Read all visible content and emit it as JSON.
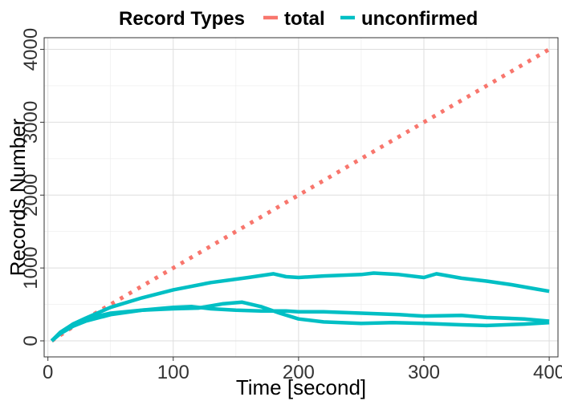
{
  "chart_data": {
    "type": "line",
    "title": "",
    "xlabel": "Time [second]",
    "ylabel": "Records Number",
    "xlim": [
      -3,
      407
    ],
    "ylim": [
      -220,
      4160
    ],
    "xticks": [
      0,
      100,
      200,
      300,
      400
    ],
    "yticks": [
      0,
      1000,
      2000,
      3000,
      4000
    ],
    "grid": true,
    "legend": {
      "title": "Record Types",
      "position": "top",
      "entries": [
        {
          "label": "total",
          "color": "#F8766D"
        },
        {
          "label": "unconfirmed",
          "color": "#00BFC4"
        }
      ]
    },
    "series": [
      {
        "legend_entry": "total",
        "color": "#F8766D",
        "style": "dotted",
        "x": [
          3,
          25,
          50,
          100,
          150,
          200,
          250,
          300,
          350,
          400
        ],
        "y": [
          0,
          250,
          500,
          1000,
          1500,
          2000,
          2500,
          3000,
          3500,
          4000
        ]
      },
      {
        "legend_entry": "unconfirmed",
        "color": "#00BFC4",
        "style": "solid",
        "x": [
          3,
          10,
          20,
          30,
          50,
          75,
          100,
          130,
          160,
          180,
          190,
          200,
          220,
          250,
          260,
          280,
          300,
          310,
          330,
          350,
          370,
          390,
          400
        ],
        "y": [
          0,
          120,
          230,
          310,
          460,
          590,
          700,
          800,
          870,
          920,
          880,
          870,
          890,
          910,
          930,
          910,
          870,
          920,
          860,
          820,
          770,
          710,
          680
        ]
      },
      {
        "legend_entry": "unconfirmed",
        "color": "#00BFC4",
        "style": "solid",
        "x": [
          3,
          10,
          20,
          30,
          50,
          75,
          100,
          120,
          140,
          155,
          170,
          185,
          200,
          220,
          250,
          275,
          300,
          330,
          350,
          380,
          400
        ],
        "y": [
          0,
          100,
          200,
          270,
          360,
          420,
          440,
          450,
          510,
          530,
          470,
          380,
          300,
          260,
          240,
          250,
          240,
          220,
          210,
          230,
          250
        ]
      },
      {
        "legend_entry": "unconfirmed",
        "color": "#00BFC4",
        "style": "solid",
        "x": [
          3,
          10,
          20,
          30,
          50,
          75,
          100,
          115,
          130,
          150,
          170,
          190,
          200,
          220,
          250,
          280,
          300,
          330,
          350,
          380,
          400
        ],
        "y": [
          0,
          110,
          230,
          300,
          380,
          420,
          460,
          470,
          440,
          420,
          410,
          410,
          400,
          400,
          380,
          360,
          340,
          350,
          320,
          300,
          270
        ]
      }
    ]
  }
}
